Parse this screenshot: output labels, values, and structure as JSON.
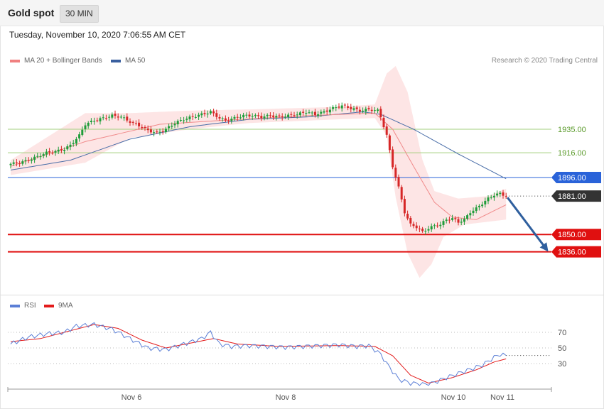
{
  "header": {
    "title": "Gold spot",
    "timeframe": "30 MIN"
  },
  "datetime": "Tuesday, November 10, 2020 7:06:55 AM CET",
  "legend": {
    "main": [
      {
        "label": "MA 20 + Bollinger Bands",
        "color": "#f08080"
      },
      {
        "label": "MA 50",
        "color": "#3a5f9f"
      }
    ],
    "rsi": [
      {
        "label": "RSI",
        "color": "#5b7fd6"
      },
      {
        "label": "9MA",
        "color": "#e31b1b"
      }
    ]
  },
  "copyright": "Research © 2020 Trading Central",
  "colors": {
    "up": "#1f9d3a",
    "down": "#d62727",
    "ma20": "#f08a8a",
    "ma50": "#4a6ea8",
    "band": "#fde0e0",
    "green_level": "#a3cf7e",
    "pivot": "#2a63d9",
    "support": "#e01010",
    "last": "#333333",
    "arrow": "#2f5f9e"
  },
  "chart_data": [
    {
      "type": "candlestick",
      "title": "Gold spot",
      "interval": "30 MIN",
      "x_labels": [
        "Nov 6",
        "Nov 8",
        "Nov 10",
        "Nov 11"
      ],
      "ylim": [
        1810,
        1982
      ],
      "levels": [
        {
          "value": 1935.0,
          "label": "1935.00",
          "kind": "resistance"
        },
        {
          "value": 1916.0,
          "label": "1916.00",
          "kind": "resistance"
        },
        {
          "value": 1896.0,
          "label": "1896.00",
          "kind": "pivot"
        },
        {
          "value": 1881.0,
          "label": "1881.00",
          "kind": "last"
        },
        {
          "value": 1850.0,
          "label": "1850.00",
          "kind": "support"
        },
        {
          "value": 1836.0,
          "label": "1836.00",
          "kind": "support"
        }
      ],
      "close_waypoints": [
        [
          0,
          1907
        ],
        [
          3,
          1908
        ],
        [
          6,
          1910
        ],
        [
          9,
          1913
        ],
        [
          12,
          1916
        ],
        [
          15,
          1917
        ],
        [
          18,
          1919
        ],
        [
          20,
          1922
        ],
        [
          23,
          1930
        ],
        [
          25,
          1939
        ],
        [
          28,
          1942
        ],
        [
          31,
          1944
        ],
        [
          34,
          1946
        ],
        [
          37,
          1945
        ],
        [
          40,
          1941
        ],
        [
          43,
          1938
        ],
        [
          46,
          1934
        ],
        [
          49,
          1932
        ],
        [
          52,
          1935
        ],
        [
          55,
          1940
        ],
        [
          58,
          1943
        ],
        [
          61,
          1945
        ],
        [
          64,
          1947
        ],
        [
          67,
          1949
        ],
        [
          70,
          1944
        ],
        [
          72,
          1942
        ],
        [
          75,
          1944
        ],
        [
          78,
          1946
        ],
        [
          81,
          1946
        ],
        [
          84,
          1945
        ],
        [
          87,
          1946
        ],
        [
          90,
          1945
        ],
        [
          93,
          1946
        ],
        [
          96,
          1947
        ],
        [
          99,
          1949
        ],
        [
          102,
          1947
        ],
        [
          105,
          1949
        ],
        [
          108,
          1952
        ],
        [
          111,
          1954
        ],
        [
          114,
          1952
        ],
        [
          117,
          1950
        ],
        [
          120,
          1951
        ],
        [
          123,
          1950
        ],
        [
          124,
          1945
        ],
        [
          126,
          1930
        ],
        [
          128,
          1905
        ],
        [
          130,
          1888
        ],
        [
          132,
          1868
        ],
        [
          134,
          1858
        ],
        [
          136,
          1856
        ],
        [
          138,
          1852
        ],
        [
          140,
          1855
        ],
        [
          142,
          1857
        ],
        [
          144,
          1858
        ],
        [
          146,
          1862
        ],
        [
          148,
          1863
        ],
        [
          150,
          1860
        ],
        [
          152,
          1862
        ],
        [
          154,
          1868
        ],
        [
          156,
          1871
        ],
        [
          158,
          1875
        ],
        [
          160,
          1879
        ],
        [
          162,
          1882
        ],
        [
          164,
          1883
        ],
        [
          166,
          1881
        ]
      ],
      "ma20_waypoints": [
        [
          0,
          1905
        ],
        [
          25,
          1925
        ],
        [
          50,
          1939
        ],
        [
          70,
          1942
        ],
        [
          100,
          1946
        ],
        [
          122,
          1948
        ],
        [
          128,
          1935
        ],
        [
          135,
          1905
        ],
        [
          142,
          1876
        ],
        [
          148,
          1864
        ],
        [
          156,
          1862
        ],
        [
          166,
          1874
        ]
      ],
      "ma50_waypoints": [
        [
          0,
          1902
        ],
        [
          20,
          1910
        ],
        [
          40,
          1927
        ],
        [
          60,
          1937
        ],
        [
          80,
          1943
        ],
        [
          100,
          1945
        ],
        [
          118,
          1949
        ],
        [
          124,
          1947
        ],
        [
          135,
          1935
        ],
        [
          150,
          1915
        ],
        [
          166,
          1895
        ]
      ],
      "band_upper_waypoints": [
        [
          0,
          1910
        ],
        [
          25,
          1948
        ],
        [
          40,
          1948
        ],
        [
          60,
          1950
        ],
        [
          80,
          1951
        ],
        [
          110,
          1953
        ],
        [
          122,
          1955
        ],
        [
          126,
          1980
        ],
        [
          129,
          1986
        ],
        [
          133,
          1965
        ],
        [
          138,
          1910
        ],
        [
          142,
          1885
        ],
        [
          150,
          1879
        ],
        [
          160,
          1881
        ],
        [
          166,
          1887
        ]
      ],
      "band_lower_waypoints": [
        [
          0,
          1898
        ],
        [
          25,
          1908
        ],
        [
          40,
          1928
        ],
        [
          60,
          1935
        ],
        [
          80,
          1940
        ],
        [
          110,
          1943
        ],
        [
          122,
          1944
        ],
        [
          126,
          1930
        ],
        [
          129,
          1880
        ],
        [
          133,
          1835
        ],
        [
          137,
          1815
        ],
        [
          141,
          1826
        ],
        [
          145,
          1848
        ],
        [
          152,
          1858
        ],
        [
          166,
          1862
        ]
      ],
      "projection": {
        "from": 1881,
        "to": 1836
      }
    },
    {
      "type": "line",
      "title": "RSI",
      "ylim": [
        0,
        100
      ],
      "ticks": [
        70,
        50,
        30
      ],
      "series": [
        {
          "name": "RSI",
          "waypoints": [
            [
              0,
              55
            ],
            [
              6,
              64
            ],
            [
              12,
              68
            ],
            [
              18,
              70
            ],
            [
              22,
              78
            ],
            [
              28,
              80
            ],
            [
              34,
              74
            ],
            [
              40,
              62
            ],
            [
              46,
              50
            ],
            [
              52,
              48
            ],
            [
              58,
              55
            ],
            [
              64,
              62
            ],
            [
              67,
              70
            ],
            [
              70,
              55
            ],
            [
              74,
              52
            ],
            [
              80,
              53
            ],
            [
              86,
              52
            ],
            [
              92,
              51
            ],
            [
              98,
              52
            ],
            [
              104,
              53
            ],
            [
              110,
              54
            ],
            [
              116,
              52
            ],
            [
              120,
              53
            ],
            [
              124,
              42
            ],
            [
              126,
              30
            ],
            [
              128,
              20
            ],
            [
              130,
              10
            ],
            [
              134,
              5
            ],
            [
              140,
              3
            ],
            [
              146,
              12
            ],
            [
              152,
              20
            ],
            [
              158,
              28
            ],
            [
              162,
              38
            ],
            [
              164,
              42
            ],
            [
              166,
              40
            ]
          ]
        },
        {
          "name": "9MA",
          "waypoints": [
            [
              0,
              58
            ],
            [
              10,
              62
            ],
            [
              20,
              72
            ],
            [
              28,
              80
            ],
            [
              36,
              75
            ],
            [
              44,
              60
            ],
            [
              52,
              50
            ],
            [
              60,
              56
            ],
            [
              68,
              62
            ],
            [
              76,
              55
            ],
            [
              90,
              52
            ],
            [
              110,
              53
            ],
            [
              122,
              52
            ],
            [
              128,
              40
            ],
            [
              134,
              15
            ],
            [
              140,
              5
            ],
            [
              148,
              12
            ],
            [
              156,
              22
            ],
            [
              162,
              32
            ],
            [
              166,
              36
            ]
          ]
        }
      ]
    }
  ]
}
